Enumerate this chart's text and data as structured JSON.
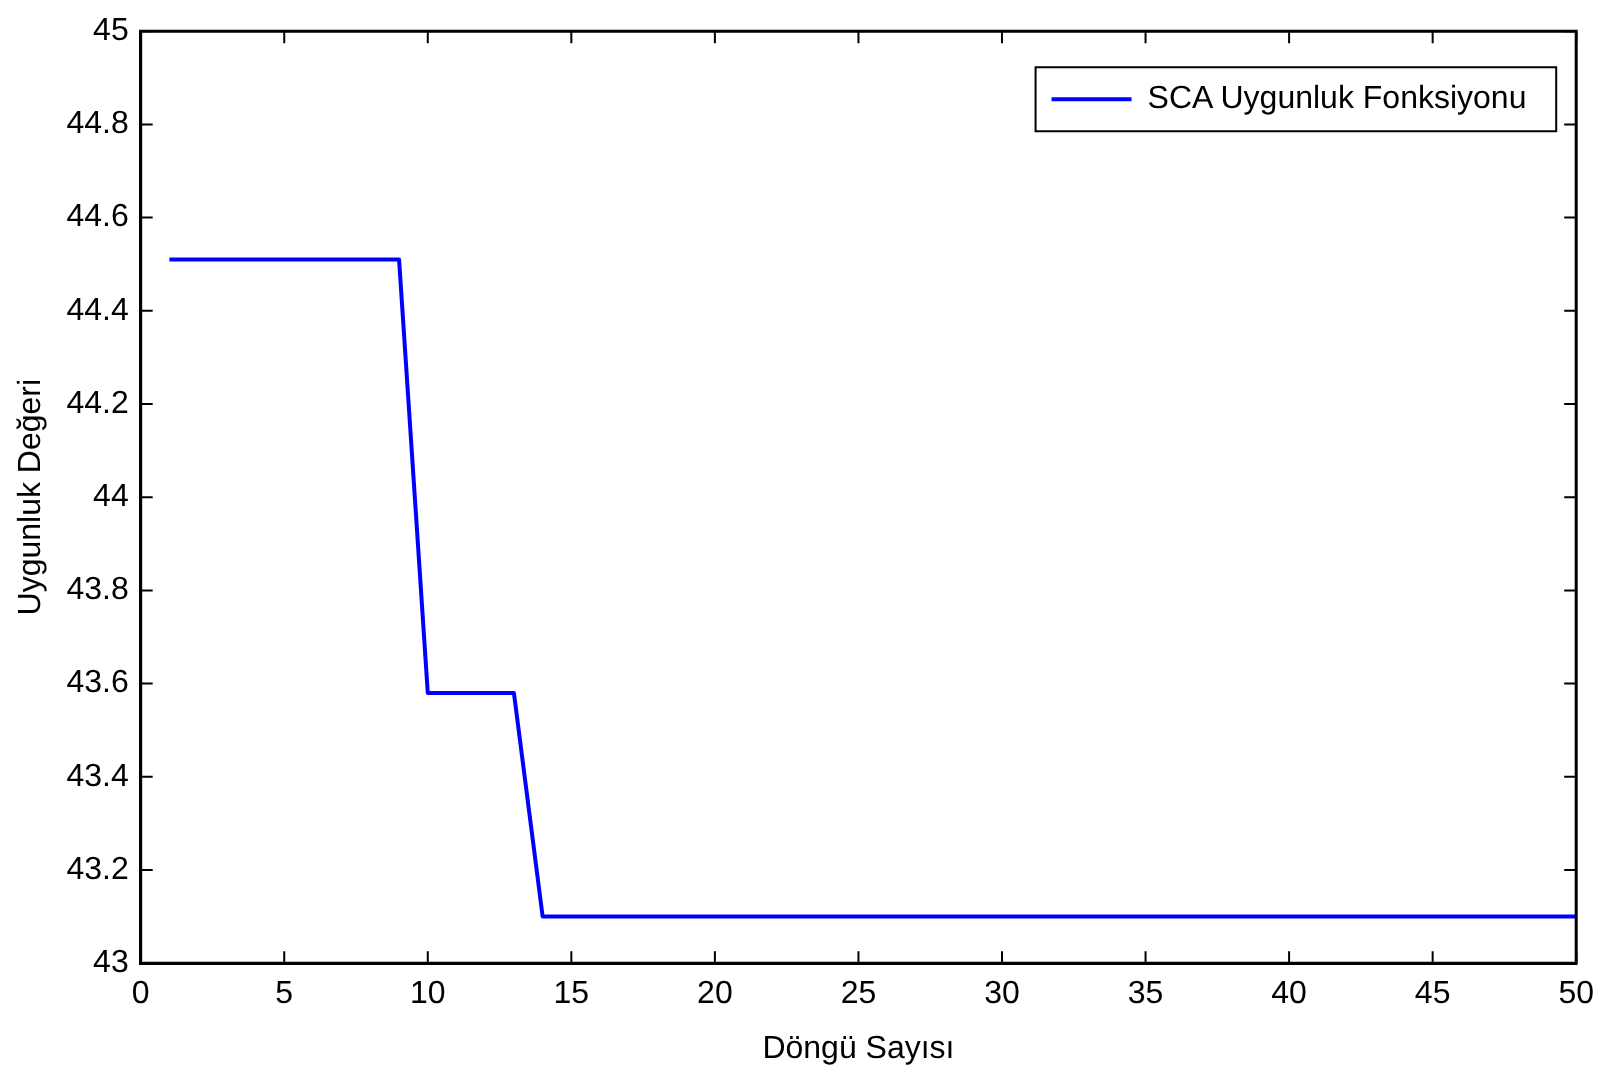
{
  "chart_data": {
    "type": "line",
    "xlabel": "Döngü Sayısı",
    "ylabel": "Uygunluk Değeri",
    "x": [
      1,
      9,
      10,
      13,
      14,
      50
    ],
    "series": [
      {
        "name": "SCA Uygunluk Fonksiyonu",
        "color": "#0000ff",
        "values": [
          44.51,
          44.51,
          43.58,
          43.58,
          43.1,
          43.1
        ]
      }
    ],
    "xlim": [
      0,
      50
    ],
    "xticks": [
      0,
      5,
      10,
      15,
      20,
      25,
      30,
      35,
      40,
      45,
      50
    ],
    "ylim": [
      43,
      45
    ],
    "yticks": [
      43,
      43.2,
      43.4,
      43.6,
      43.8,
      44,
      44.2,
      44.4,
      44.6,
      44.8,
      45
    ],
    "grid": false,
    "legend": "top right",
    "marker": "none",
    "line_style": "solid"
  }
}
